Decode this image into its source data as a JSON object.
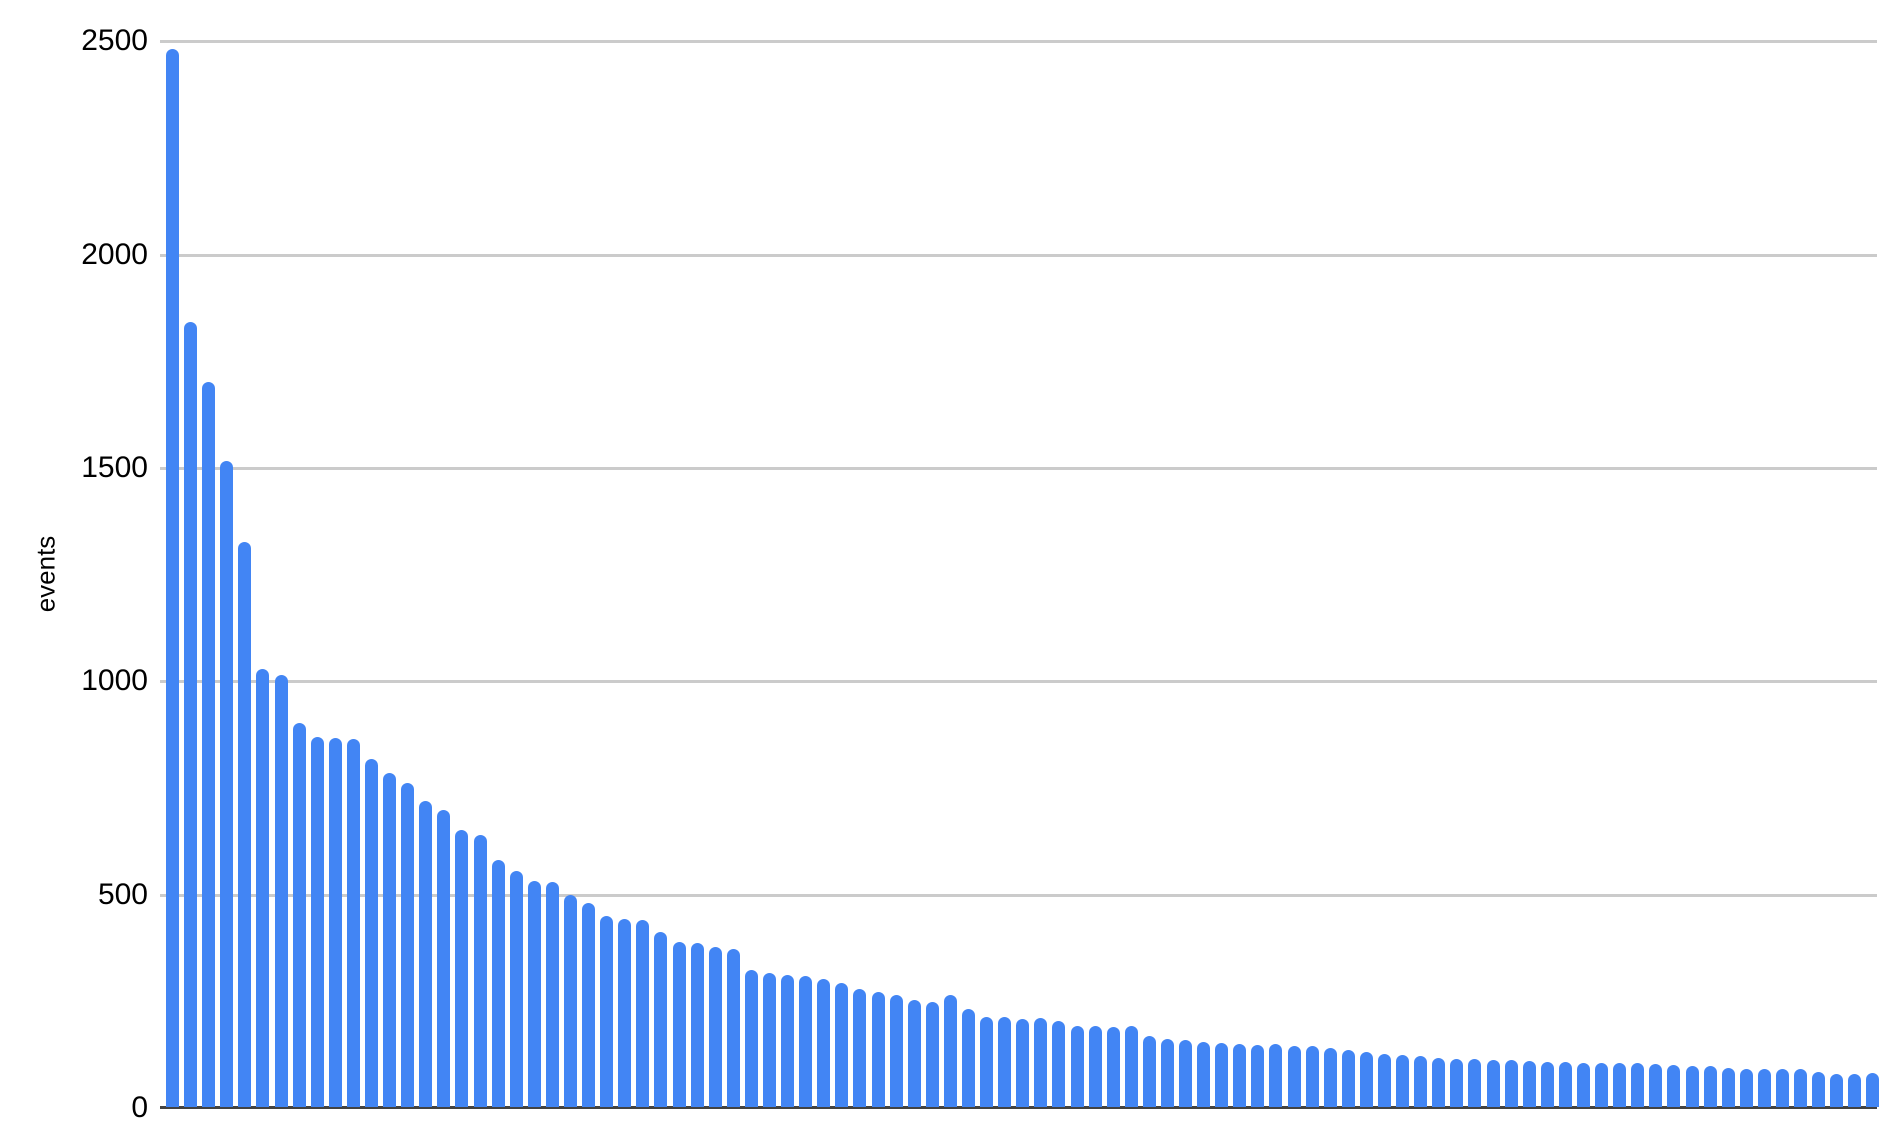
{
  "chart_data": {
    "type": "bar",
    "title": "",
    "xlabel": "",
    "ylabel": "events",
    "ylim": [
      0,
      2500
    ],
    "yticks": [
      0,
      500,
      1000,
      1500,
      2000,
      2500
    ],
    "grid": true,
    "legend_position": "none",
    "x_tick_labels_visible": false,
    "bar_color": "#4285f4",
    "grid_color": "#cbcbcb",
    "axis_color": "#424242",
    "label_color": "#000000",
    "values": [
      2480,
      1840,
      1700,
      1515,
      1325,
      1027,
      1013,
      900,
      868,
      865,
      863,
      816,
      782,
      760,
      716,
      696,
      649,
      637,
      578,
      554,
      530,
      528,
      497,
      478,
      448,
      441,
      438,
      409,
      387,
      385,
      374,
      371,
      320,
      314,
      310,
      306,
      301,
      290,
      277,
      269,
      263,
      250,
      247,
      262,
      230,
      212,
      211,
      207,
      209,
      201,
      190,
      191,
      188,
      190,
      166,
      160,
      156,
      153,
      151,
      147,
      146,
      147,
      142,
      143,
      138,
      133,
      128,
      124,
      121,
      119,
      116,
      113,
      112,
      111,
      109,
      108,
      106,
      105,
      104,
      103,
      102,
      104,
      100,
      98,
      96,
      97,
      92,
      90,
      90,
      88,
      90,
      81,
      78,
      78,
      80
    ]
  }
}
